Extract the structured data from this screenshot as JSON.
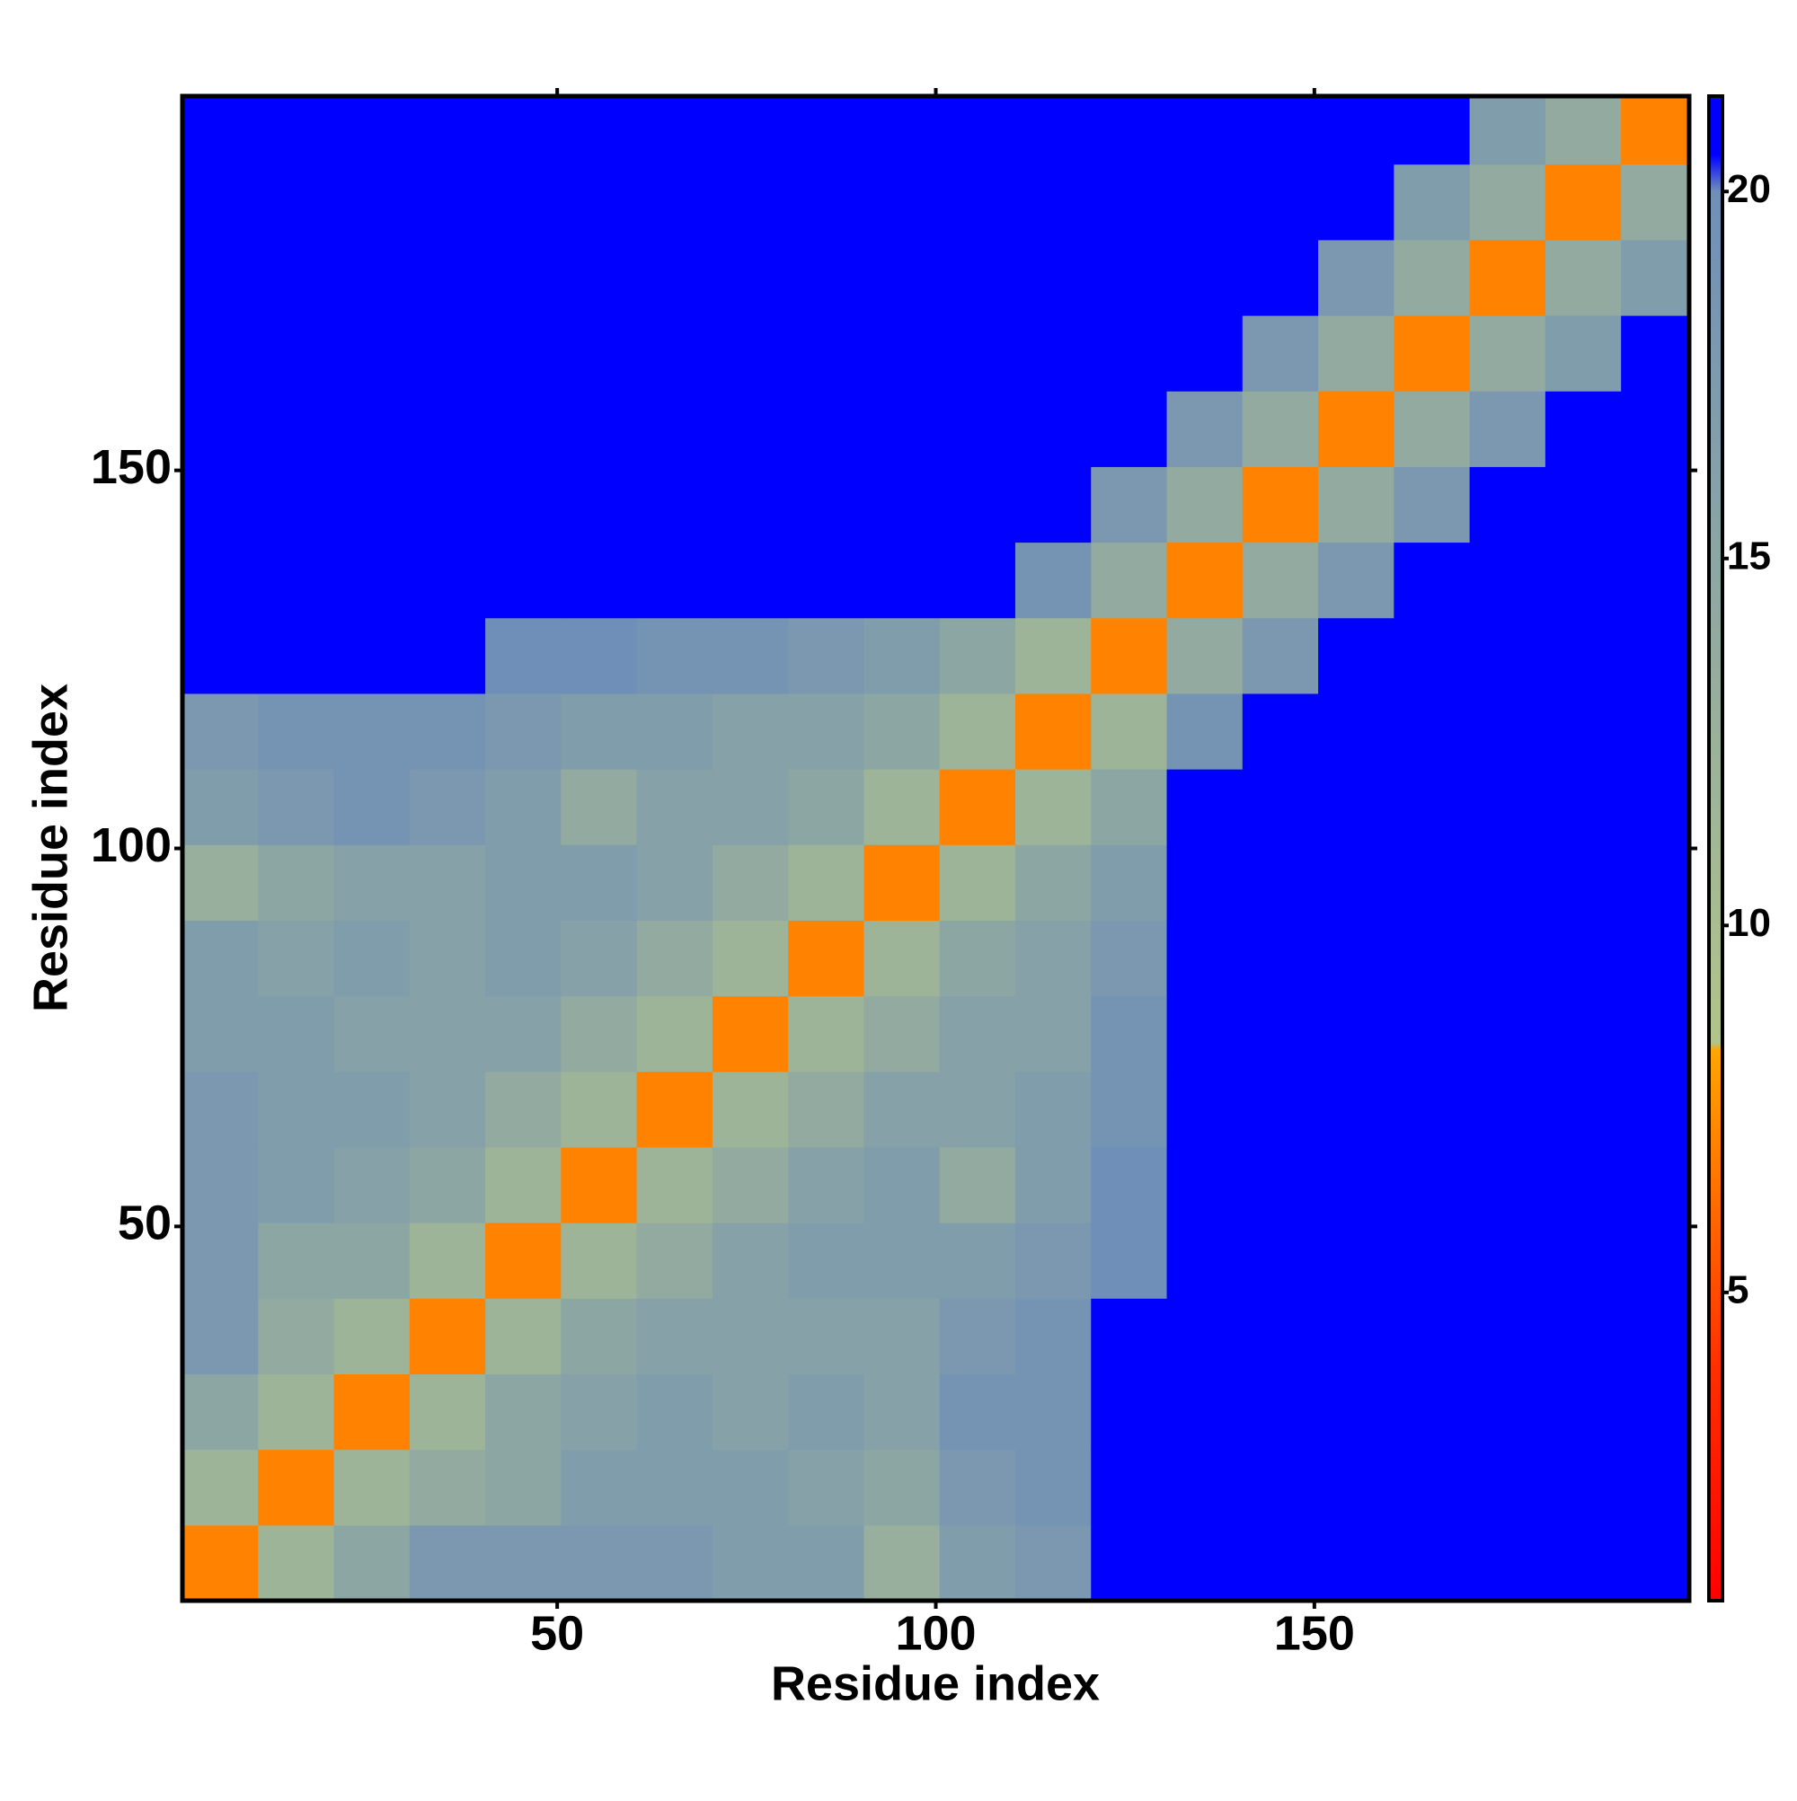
{
  "chart_data": {
    "type": "heatmap",
    "x_label": "Residue index",
    "y_label": "Residue index",
    "bins": [
      0.5,
      10.5,
      20.5,
      30.5,
      40.5,
      50.5,
      60.5,
      70.5,
      80.5,
      90.5,
      100.5,
      110.5,
      120.5,
      130.5,
      140.5,
      150.5,
      160.5,
      170.5,
      180.5,
      190.5,
      199.5
    ],
    "values": [
      [
        7,
        12,
        15,
        18,
        18,
        18,
        18,
        17,
        17,
        13,
        17,
        18,
        21,
        21,
        21,
        21,
        21,
        21,
        21,
        21
      ],
      [
        12,
        7,
        12,
        14,
        15,
        17,
        17,
        17,
        16,
        15,
        18,
        19,
        21,
        21,
        21,
        21,
        21,
        21,
        21,
        21
      ],
      [
        15,
        12,
        7,
        12,
        15,
        16,
        17,
        16,
        17,
        16,
        19,
        19,
        21,
        21,
        21,
        21,
        21,
        21,
        21,
        21
      ],
      [
        18,
        14,
        12,
        7,
        12,
        15,
        16,
        16,
        16,
        16,
        18,
        19,
        21,
        21,
        21,
        21,
        21,
        21,
        21,
        21
      ],
      [
        18,
        15,
        15,
        12,
        7,
        12,
        14,
        16,
        17,
        17,
        17,
        18,
        20,
        21,
        21,
        21,
        21,
        21,
        21,
        21
      ],
      [
        18,
        17,
        16,
        15,
        12,
        7,
        12,
        14,
        16,
        17,
        14,
        17,
        20,
        21,
        21,
        21,
        21,
        21,
        21,
        21
      ],
      [
        18,
        17,
        17,
        16,
        14,
        12,
        7,
        12,
        14,
        16,
        16,
        17,
        19,
        21,
        21,
        21,
        21,
        21,
        21,
        21
      ],
      [
        17,
        17,
        16,
        16,
        16,
        14,
        12,
        7,
        12,
        14,
        16,
        16,
        19,
        21,
        21,
        21,
        21,
        21,
        21,
        21
      ],
      [
        17,
        16,
        17,
        16,
        17,
        16,
        14,
        12,
        7,
        12,
        15,
        16,
        18,
        21,
        21,
        21,
        21,
        21,
        21,
        21
      ],
      [
        13,
        15,
        16,
        16,
        17,
        17,
        16,
        14,
        12,
        7,
        12,
        15,
        17,
        21,
        21,
        21,
        21,
        21,
        21,
        21
      ],
      [
        17,
        18,
        19,
        18,
        17,
        14,
        16,
        16,
        15,
        12,
        7,
        12,
        15,
        21,
        21,
        21,
        21,
        21,
        21,
        21
      ],
      [
        18,
        19,
        19,
        19,
        18,
        17,
        17,
        16,
        16,
        15,
        12,
        7,
        12,
        19,
        21,
        21,
        21,
        21,
        21,
        21
      ],
      [
        21,
        21,
        21,
        21,
        20,
        20,
        19,
        19,
        18,
        17,
        15,
        12,
        7,
        14,
        18,
        21,
        21,
        21,
        21,
        21
      ],
      [
        21,
        21,
        21,
        21,
        21,
        21,
        21,
        21,
        21,
        21,
        21,
        19,
        14,
        7,
        14,
        18,
        21,
        21,
        21,
        21
      ],
      [
        21,
        21,
        21,
        21,
        21,
        21,
        21,
        21,
        21,
        21,
        21,
        21,
        18,
        14,
        7,
        14,
        18,
        21,
        21,
        21
      ],
      [
        21,
        21,
        21,
        21,
        21,
        21,
        21,
        21,
        21,
        21,
        21,
        21,
        21,
        18,
        14,
        7,
        14,
        18,
        21,
        21
      ],
      [
        21,
        21,
        21,
        21,
        21,
        21,
        21,
        21,
        21,
        21,
        21,
        21,
        21,
        21,
        18,
        14,
        7,
        14,
        17,
        21
      ],
      [
        21,
        21,
        21,
        21,
        21,
        21,
        21,
        21,
        21,
        21,
        21,
        21,
        21,
        21,
        21,
        18,
        14,
        7,
        14,
        17
      ],
      [
        21,
        21,
        21,
        21,
        21,
        21,
        21,
        21,
        21,
        21,
        21,
        21,
        21,
        21,
        21,
        21,
        17,
        14,
        7,
        14
      ],
      [
        21,
        21,
        21,
        21,
        21,
        21,
        21,
        21,
        21,
        21,
        21,
        21,
        21,
        21,
        21,
        21,
        21,
        17,
        14,
        7
      ]
    ],
    "xlim": [
      0.5,
      199.5
    ],
    "ylim": [
      0.5,
      199.5
    ],
    "xticks": [
      50,
      100,
      150
    ],
    "yticks": [
      50,
      100,
      150
    ],
    "clim": [
      0.8,
      21.3
    ],
    "cticks": [
      5,
      10,
      15,
      20
    ],
    "colorscale": [
      [
        0.8,
        "#ff0000"
      ],
      [
        4,
        "#ff3000"
      ],
      [
        8.3,
        "#ffa500"
      ],
      [
        8.4,
        "#b2c48a"
      ],
      [
        20,
        "#6f8fb8"
      ],
      [
        20.5,
        "#0000ff"
      ],
      [
        21.3,
        "#0000ff"
      ]
    ]
  }
}
